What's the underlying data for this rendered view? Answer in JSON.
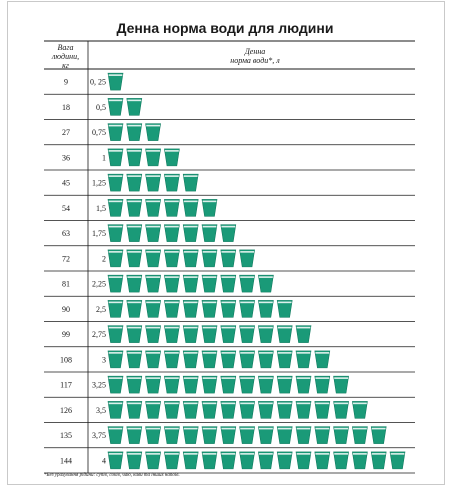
{
  "title": "Денна норма води для людини",
  "header": {
    "weight_line1": "Вага",
    "weight_line2": "людини,",
    "weight_unit": "кг",
    "norm_line1": "Денна",
    "norm_line2": "норма води*,",
    "norm_unit": "л"
  },
  "footnote": "*Без урахування рідини: супів, соків, чаю, кави та інших напоїв.",
  "colors": {
    "cup": "#1a9a78",
    "cup_rim": "#0f7a5e",
    "line": "#1a1a1a"
  },
  "chart_data": {
    "type": "table",
    "icon": "water-glass-icon",
    "liters_per_icon": 0.25,
    "rows": [
      {
        "weight": "9",
        "norm": "0, 25",
        "cups": 1
      },
      {
        "weight": "18",
        "norm": "0,5",
        "cups": 2
      },
      {
        "weight": "27",
        "norm": "0,75",
        "cups": 3
      },
      {
        "weight": "36",
        "norm": "1",
        "cups": 4
      },
      {
        "weight": "45",
        "norm": "1,25",
        "cups": 5
      },
      {
        "weight": "54",
        "norm": "1,5",
        "cups": 6
      },
      {
        "weight": "63",
        "norm": "1,75",
        "cups": 7
      },
      {
        "weight": "72",
        "norm": "2",
        "cups": 8
      },
      {
        "weight": "81",
        "norm": "2,25",
        "cups": 9
      },
      {
        "weight": "90",
        "norm": "2,5",
        "cups": 10
      },
      {
        "weight": "99",
        "norm": "2,75",
        "cups": 11
      },
      {
        "weight": "108",
        "norm": "3",
        "cups": 12
      },
      {
        "weight": "117",
        "norm": "3,25",
        "cups": 13
      },
      {
        "weight": "126",
        "norm": "3,5",
        "cups": 14
      },
      {
        "weight": "135",
        "norm": "3,75",
        "cups": 15
      },
      {
        "weight": "144",
        "norm": "4",
        "cups": 16
      }
    ]
  }
}
